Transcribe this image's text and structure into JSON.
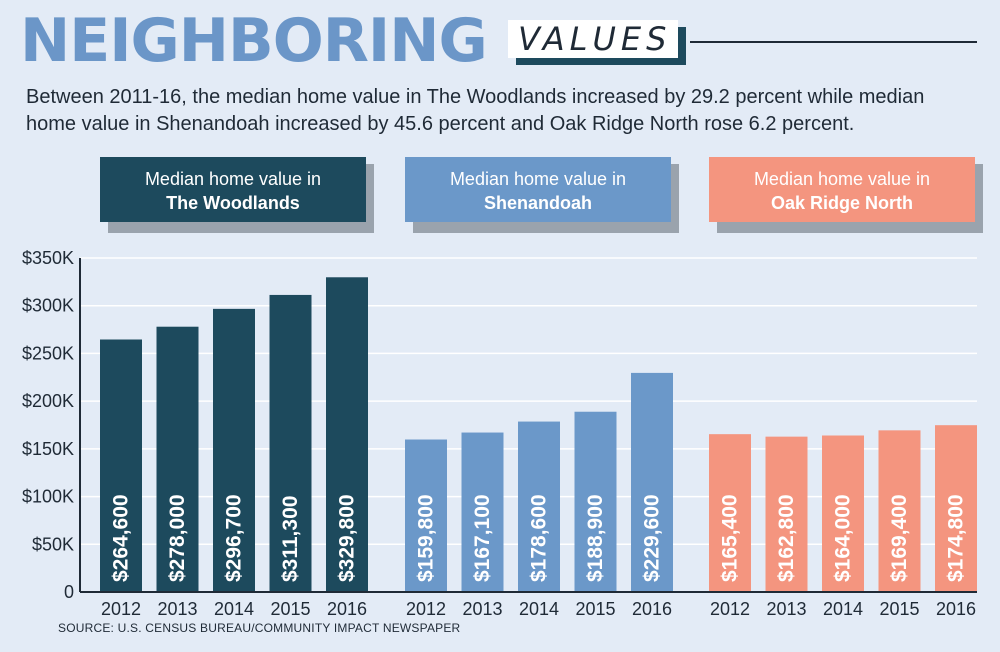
{
  "header": {
    "title_main": "NEIGHBORING",
    "title_sub": "VALUES",
    "subtitle": "Between 2011-16, the median home value in The Woodlands increased by 29.2 percent while median home value in Shenandoah increased by 45.6 percent and Oak Ridge North rose 6.2 percent."
  },
  "colors": {
    "background": "#e3ebf6",
    "woodlands": "#1d4a5d",
    "shenandoah": "#6b98c9",
    "oak_ridge_north": "#f4957f",
    "title_blue": "#6b96c8",
    "text": "#1f2a36"
  },
  "chart_data": {
    "type": "bar",
    "ylim": [
      0,
      350000
    ],
    "ytick_values": [
      0,
      50000,
      100000,
      150000,
      200000,
      250000,
      300000,
      350000
    ],
    "ytick_labels": [
      "0",
      "$50K",
      "$100K",
      "$150K",
      "$200K",
      "$250K",
      "$300K",
      "$350K"
    ],
    "grid": true,
    "categories": [
      "2012",
      "2013",
      "2014",
      "2015",
      "2016"
    ],
    "series": [
      {
        "label_line1": "Median home value in",
        "label_line2": "The Woodlands",
        "color": "#1d4a5d",
        "values": [
          264600,
          278000,
          296700,
          311300,
          329800
        ],
        "value_labels": [
          "$264,600",
          "$278,000",
          "$296,700",
          "$311,300",
          "$329,800"
        ]
      },
      {
        "label_line1": "Median home value in",
        "label_line2": "Shenandoah",
        "color": "#6b98c9",
        "values": [
          159800,
          167100,
          178600,
          188900,
          229600
        ],
        "value_labels": [
          "$159,800",
          "$167,100",
          "$178,600",
          "$188,900",
          "$229,600"
        ]
      },
      {
        "label_line1": "Median home value in",
        "label_line2": "Oak Ridge North",
        "color": "#f4957f",
        "values": [
          165400,
          162800,
          164000,
          169400,
          174800
        ],
        "value_labels": [
          "$165,400",
          "$162,800",
          "$164,000",
          "$169,400",
          "$174,800"
        ]
      }
    ]
  },
  "source": "SOURCE: U.S. CENSUS BUREAU/COMMUNITY IMPACT NEWSPAPER"
}
